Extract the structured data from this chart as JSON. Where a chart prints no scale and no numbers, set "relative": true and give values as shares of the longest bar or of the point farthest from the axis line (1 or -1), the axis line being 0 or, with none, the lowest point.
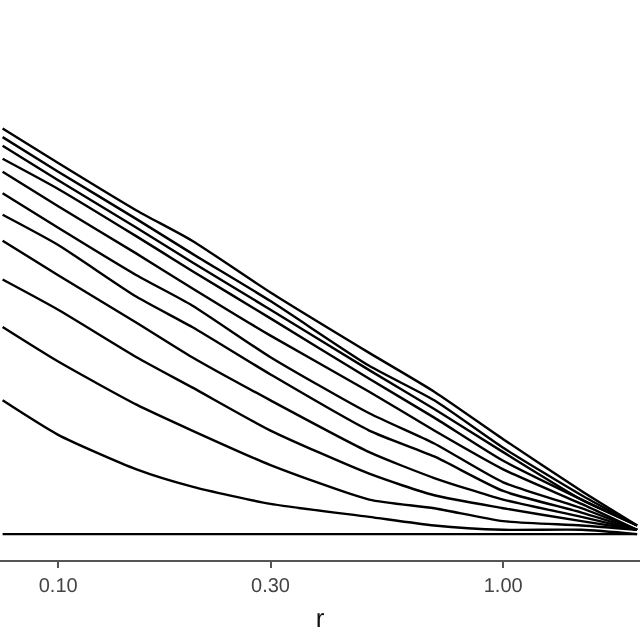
{
  "chart_data": {
    "type": "line",
    "relative": true,
    "xlabel": "r",
    "log": "x",
    "marker": "none",
    "line_style": "solid",
    "tick_labels": "x",
    "x": [
      0.075,
      0.1,
      0.15,
      0.2,
      0.3,
      0.5,
      0.7,
      1.0,
      1.5,
      2.0
    ],
    "xlim": [
      0.074,
      2.03
    ],
    "xticks": [
      {
        "value": 0.1,
        "label": "0.10"
      },
      {
        "value": 0.3,
        "label": "0.30"
      },
      {
        "value": 1.0,
        "label": "1.00"
      }
    ],
    "series": [
      {
        "color": "#000000",
        "values": [
          1,
          0.92,
          0.81,
          0.74,
          0.62,
          0.48,
          0.39,
          0.28,
          0.16,
          0.08
        ]
      },
      {
        "color": "#000000",
        "values": [
          0.98,
          0.9,
          0.79,
          0.71,
          0.6,
          0.45,
          0.37,
          0.26,
          0.15,
          0.08
        ]
      },
      {
        "color": "#000000",
        "values": [
          0.96,
          0.88,
          0.77,
          0.69,
          0.58,
          0.44,
          0.35,
          0.25,
          0.14,
          0.08
        ]
      },
      {
        "color": "#000000",
        "values": [
          0.93,
          0.86,
          0.75,
          0.67,
          0.56,
          0.42,
          0.33,
          0.23,
          0.14,
          0.08
        ]
      },
      {
        "color": "#000000",
        "values": [
          0.9,
          0.82,
          0.71,
          0.63,
          0.52,
          0.39,
          0.3,
          0.21,
          0.13,
          0.07
        ]
      },
      {
        "color": "#000000",
        "values": [
          0.85,
          0.77,
          0.66,
          0.59,
          0.47,
          0.34,
          0.27,
          0.18,
          0.12,
          0.07
        ]
      },
      {
        "color": "#000000",
        "values": [
          0.8,
          0.73,
          0.61,
          0.54,
          0.43,
          0.3,
          0.24,
          0.16,
          0.11,
          0.07
        ]
      },
      {
        "color": "#000000",
        "values": [
          0.74,
          0.66,
          0.55,
          0.47,
          0.37,
          0.25,
          0.19,
          0.14,
          0.1,
          0.07
        ]
      },
      {
        "color": "#000000",
        "values": [
          0.65,
          0.58,
          0.47,
          0.4,
          0.3,
          0.2,
          0.15,
          0.12,
          0.09,
          0.07
        ]
      },
      {
        "color": "#000000",
        "values": [
          0.54,
          0.46,
          0.36,
          0.3,
          0.22,
          0.14,
          0.12,
          0.09,
          0.08,
          0.07
        ]
      },
      {
        "color": "#000000",
        "values": [
          0.37,
          0.29,
          0.21,
          0.17,
          0.13,
          0.1,
          0.08,
          0.07,
          0.07,
          0.06
        ]
      },
      {
        "color": "#000000",
        "values": [
          0.06,
          0.06,
          0.06,
          0.06,
          0.06,
          0.06,
          0.06,
          0.06,
          0.06,
          0.06
        ]
      }
    ]
  }
}
